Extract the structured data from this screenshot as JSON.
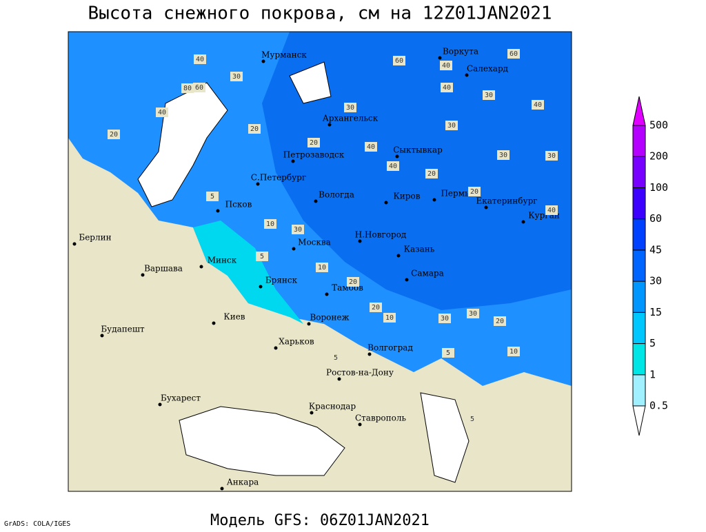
{
  "title": "Высота снежного покрова, см на 12Z01JAN2021",
  "footer": "Модель GFS: 06Z01JAN2021",
  "credit": "GrADS: COLA/IGES",
  "cities": [
    "Мурманск",
    "Воркута",
    "Салехард",
    "Архангельск",
    "Сыктывкар",
    "Петрозаводск",
    "С.Петербург",
    "Вологда",
    "Киров",
    "Пермь",
    "Екатеринбург",
    "Курган",
    "Псков",
    "Берлин",
    "Н.Новгород",
    "Москва",
    "Казань",
    "Минск",
    "Варшава",
    "Самара",
    "Брянск",
    "Тамбов",
    "Киев",
    "Воронеж",
    "Будапешт",
    "Харьков",
    "Волгоград",
    "Ростов-на-Дону",
    "Бухарест",
    "Краснодар",
    "Ставрополь",
    "Анкара"
  ],
  "contour_labels": [
    40,
    80,
    60,
    30,
    40,
    20,
    60,
    40,
    20,
    30,
    30,
    30,
    20,
    40,
    40,
    40,
    30,
    30,
    20,
    20,
    5,
    10,
    5,
    10,
    20,
    20,
    10,
    30,
    30,
    20,
    5,
    10,
    5,
    5,
    60,
    40,
    30,
    40
  ],
  "legend": [
    0.5,
    1,
    5,
    15,
    30,
    45,
    60,
    100,
    200,
    500
  ]
}
